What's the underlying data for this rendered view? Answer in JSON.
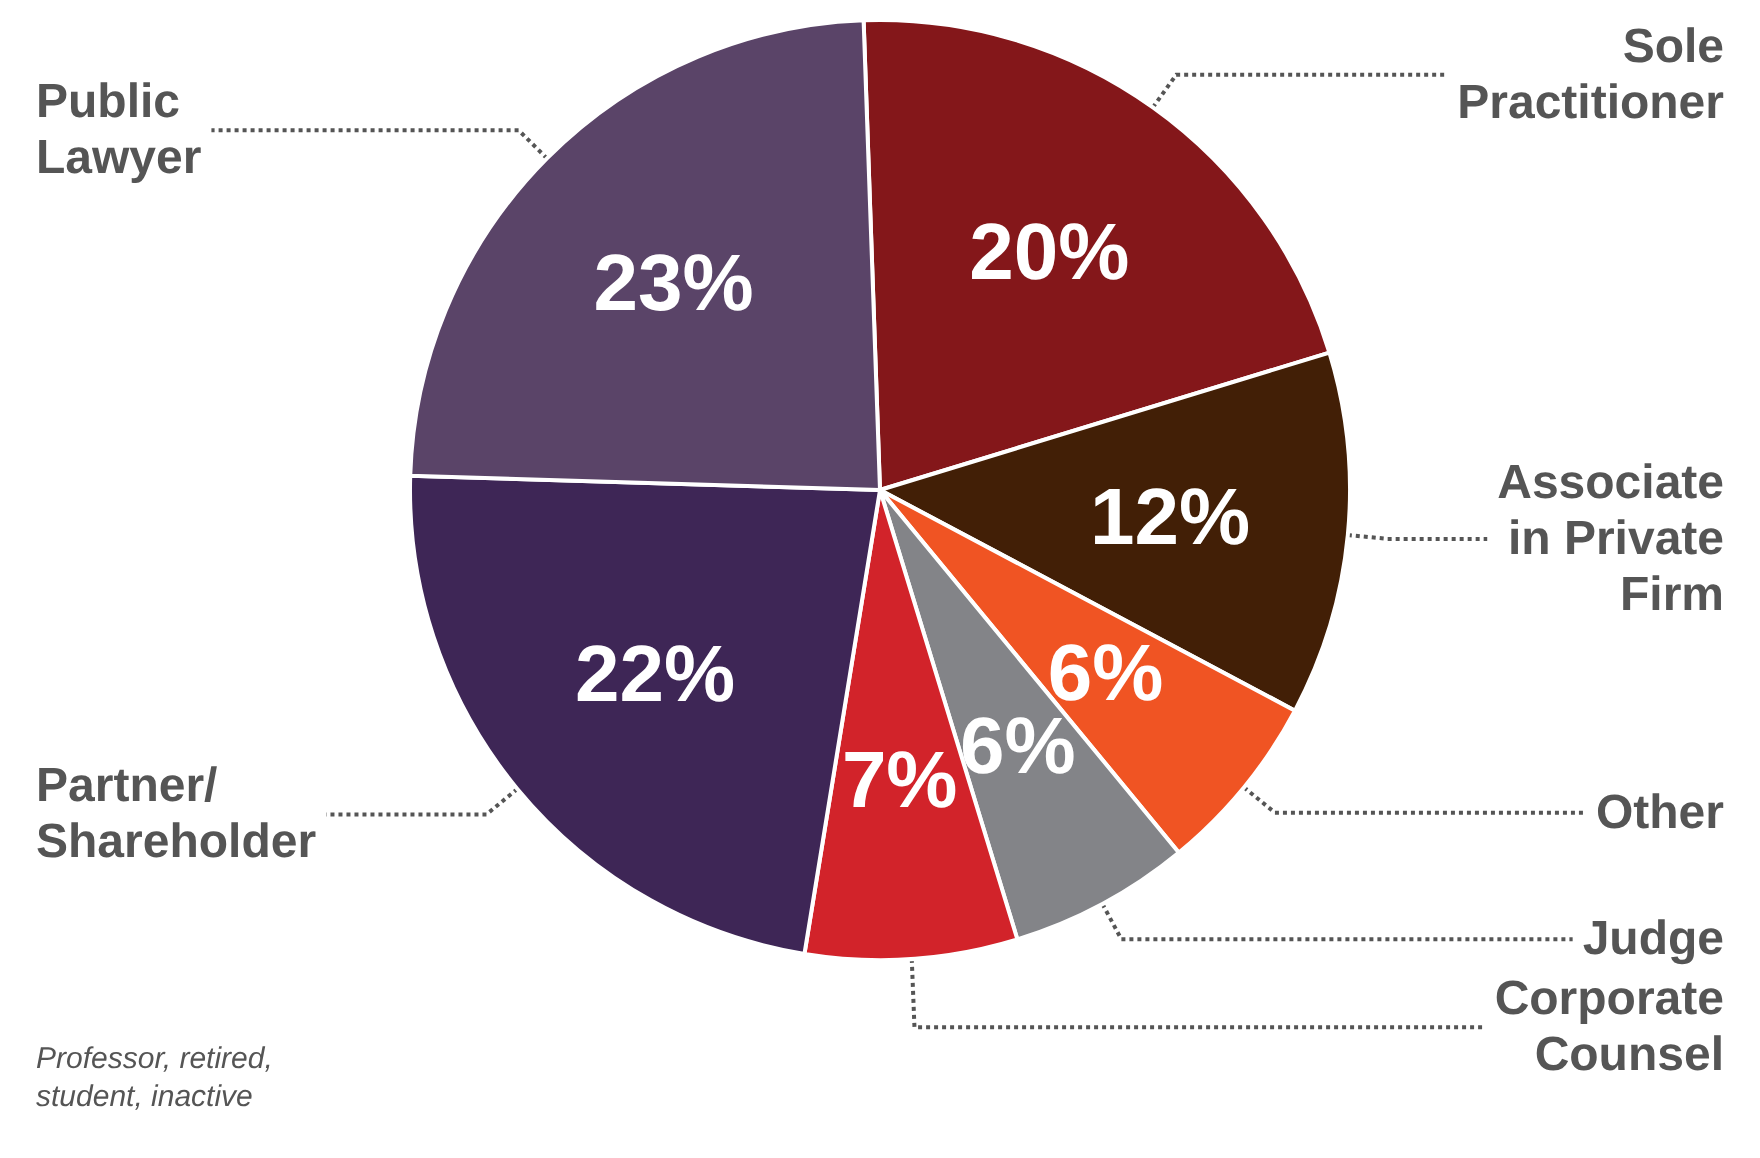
{
  "chart_data": {
    "type": "pie",
    "categories": [
      "Sole\nPractitioner",
      "Associate\nin Private\nFirm",
      "Other",
      "Judge",
      "Corporate\nCounsel",
      "Partner/\nShareholder",
      "Public\nLawyer"
    ],
    "values": [
      20,
      12,
      6,
      6,
      7,
      22,
      23
    ],
    "value_labels": [
      "20%",
      "12%",
      "6%",
      "6%",
      "7%",
      "22%",
      "23%"
    ],
    "colors": [
      "#84171a",
      "#421f06",
      "#f05423",
      "#838488",
      "#d2232a",
      "#3e2656",
      "#5a4468"
    ],
    "legend": false,
    "annotations": [
      "Professor, retired,\nstudent, inactive"
    ]
  }
}
